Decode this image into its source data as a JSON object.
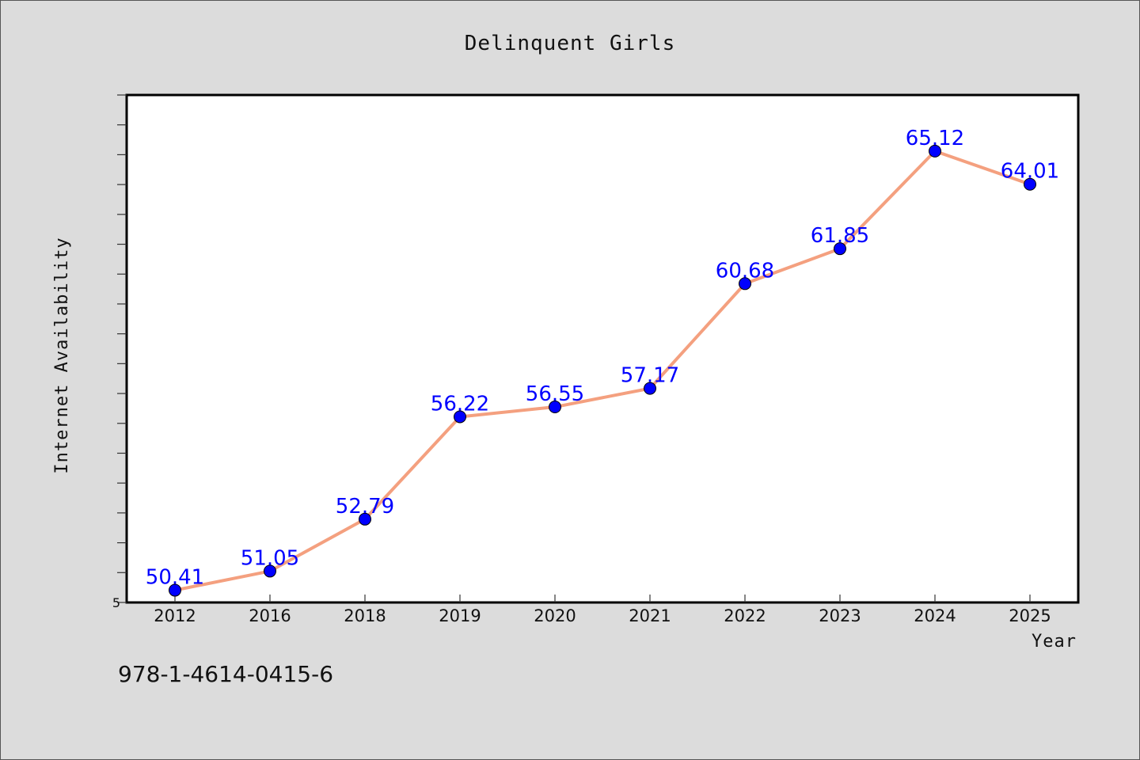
{
  "chart_data": {
    "type": "line",
    "title": "Delinquent Girls",
    "xlabel": "Year",
    "ylabel": "Internet Availability",
    "categories": [
      "2012",
      "2016",
      "2018",
      "2019",
      "2020",
      "2021",
      "2022",
      "2023",
      "2024",
      "2025"
    ],
    "values": [
      50.41,
      51.05,
      52.79,
      56.22,
      56.55,
      57.17,
      60.68,
      61.85,
      65.12,
      64.01
    ],
    "data_labels": [
      "50.41",
      "51.05",
      "52.79",
      "56.22",
      "56.55",
      "57.17",
      "60.68",
      "61.85",
      "65.12",
      "64.01"
    ],
    "y_tick_labels": [
      "5"
    ],
    "ylim": [
      50,
      67
    ],
    "grid": false,
    "colors": {
      "line": "#f4a07f",
      "marker": "#0000ff",
      "data_label": "#0000ff",
      "background": "#dcdcdc",
      "plot_background": "#ffffff"
    }
  },
  "footer": {
    "identifier": "978-1-4614-0415-6"
  }
}
